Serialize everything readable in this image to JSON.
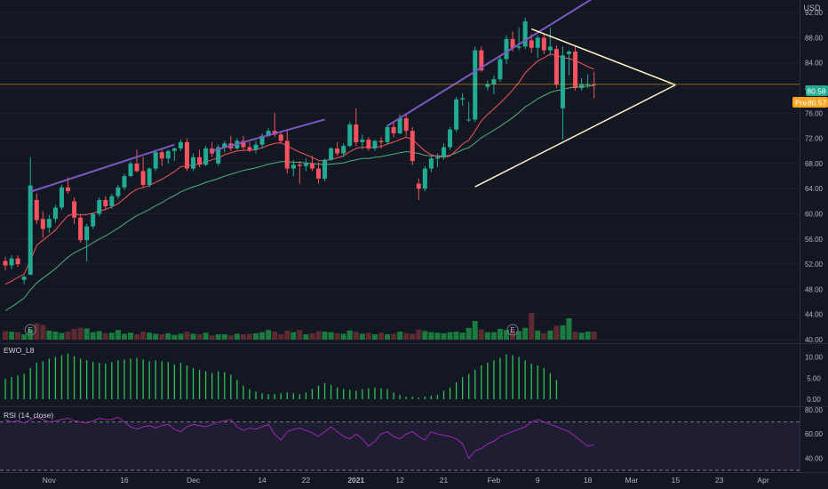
{
  "currency": "USD",
  "price_badge": {
    "label": "80.58",
    "value": 80.58,
    "color": "#22ab94"
  },
  "pre_badge": {
    "label": "Pre",
    "value_label": "80.57",
    "value": 80.57,
    "color": "#f5a623"
  },
  "current_price_line": 80.58,
  "colors": {
    "up": "#22ab94",
    "down": "#f7525f",
    "purple": "#7e57c2",
    "triangle": "#fff3c4",
    "ema_fast": "#f7525f",
    "ema_slow": "#4caf7c",
    "rsi": "#9c27b0"
  },
  "chart_data": [
    {
      "type": "candlestick",
      "title": "",
      "ylim": [
        40,
        94
      ],
      "y_ticks": [
        "40.00",
        "44.00",
        "48.00",
        "52.00",
        "56.00",
        "60.00",
        "64.00",
        "68.00",
        "72.00",
        "76.00",
        "80.00",
        "84.00",
        "88.00",
        "92.00"
      ],
      "x_ticks": [
        "Nov",
        "16",
        "Dec",
        "14",
        "22",
        "2021",
        "12",
        "21",
        "Feb",
        "9",
        "18",
        "Mar",
        "15",
        "23",
        "Apr"
      ],
      "candles": [
        [
          52.5,
          53.2,
          51.0,
          51.8
        ],
        [
          51.8,
          53.4,
          51.2,
          52.9
        ],
        [
          52.9,
          53.4,
          51.6,
          52.0
        ],
        [
          49.5,
          50.2,
          48.8,
          50.0
        ],
        [
          50.3,
          69.0,
          50.3,
          64.5
        ],
        [
          62.2,
          63.2,
          58.4,
          59.0
        ],
        [
          59.2,
          60.4,
          56.2,
          57.6
        ],
        [
          57.8,
          59.8,
          57.0,
          59.2
        ],
        [
          59.2,
          61.4,
          58.6,
          61.0
        ],
        [
          61.0,
          64.6,
          60.6,
          64.2
        ],
        [
          64.2,
          65.8,
          63.2,
          63.6
        ],
        [
          62.0,
          62.6,
          58.4,
          59.4
        ],
        [
          59.4,
          60.0,
          55.4,
          55.8
        ],
        [
          55.8,
          58.4,
          52.4,
          58.0
        ],
        [
          58.0,
          60.2,
          57.6,
          60.0
        ],
        [
          60.0,
          62.6,
          59.6,
          62.2
        ],
        [
          62.2,
          62.8,
          60.6,
          61.2
        ],
        [
          61.2,
          63.2,
          60.8,
          62.8
        ],
        [
          62.8,
          64.6,
          62.4,
          64.2
        ],
        [
          64.2,
          66.4,
          63.8,
          66.0
        ],
        [
          66.0,
          68.4,
          65.8,
          68.0
        ],
        [
          68.0,
          70.2,
          66.6,
          66.8
        ],
        [
          66.8,
          69.0,
          64.2,
          64.6
        ],
        [
          64.6,
          67.4,
          64.2,
          67.2
        ],
        [
          67.2,
          70.2,
          66.8,
          69.8
        ],
        [
          69.8,
          70.4,
          67.6,
          68.8
        ],
        [
          68.8,
          70.2,
          68.0,
          70.0
        ],
        [
          70.0,
          70.6,
          68.4,
          70.4
        ],
        [
          70.4,
          71.8,
          70.0,
          71.4
        ],
        [
          71.4,
          72.0,
          66.8,
          67.2
        ],
        [
          67.2,
          69.6,
          66.8,
          69.0
        ],
        [
          69.0,
          70.2,
          67.4,
          67.8
        ],
        [
          67.8,
          70.8,
          67.6,
          70.4
        ],
        [
          70.4,
          71.4,
          69.0,
          69.6
        ],
        [
          68.0,
          71.0,
          67.6,
          70.6
        ],
        [
          70.6,
          71.6,
          69.8,
          71.2
        ],
        [
          71.2,
          72.4,
          70.0,
          70.4
        ],
        [
          70.4,
          72.0,
          70.2,
          71.6
        ],
        [
          71.6,
          72.4,
          70.2,
          70.6
        ],
        [
          70.6,
          71.4,
          69.8,
          70.2
        ],
        [
          70.2,
          71.6,
          69.6,
          71.0
        ],
        [
          71.0,
          72.8,
          70.4,
          72.4
        ],
        [
          72.4,
          73.6,
          72.2,
          73.2
        ],
        [
          73.2,
          76.0,
          72.2,
          72.6
        ],
        [
          72.6,
          73.2,
          71.2,
          71.6
        ],
        [
          71.6,
          73.4,
          66.4,
          67.2
        ],
        [
          67.2,
          68.6,
          66.0,
          67.8
        ],
        [
          67.8,
          68.4,
          64.8,
          67.6
        ],
        [
          67.6,
          68.8,
          66.8,
          68.0
        ],
        [
          68.0,
          69.2,
          66.8,
          67.2
        ],
        [
          67.2,
          68.2,
          64.8,
          65.6
        ],
        [
          65.6,
          68.8,
          65.2,
          68.6
        ],
        [
          68.6,
          70.6,
          68.4,
          70.4
        ],
        [
          70.4,
          71.4,
          69.2,
          69.6
        ],
        [
          69.6,
          71.2,
          69.0,
          70.8
        ],
        [
          70.8,
          74.6,
          70.6,
          74.2
        ],
        [
          74.2,
          76.8,
          70.8,
          71.4
        ],
        [
          71.4,
          72.6,
          70.2,
          71.8
        ],
        [
          71.8,
          72.2,
          70.0,
          70.4
        ],
        [
          70.4,
          71.8,
          70.0,
          71.6
        ],
        [
          71.6,
          72.2,
          70.4,
          71.4
        ],
        [
          71.4,
          74.2,
          71.0,
          73.8
        ],
        [
          73.8,
          74.6,
          72.2,
          72.8
        ],
        [
          72.8,
          75.8,
          72.6,
          75.2
        ],
        [
          75.2,
          75.8,
          72.4,
          73.2
        ],
        [
          73.2,
          73.8,
          67.8,
          68.4
        ],
        [
          64.8,
          65.6,
          62.2,
          64.0
        ],
        [
          64.0,
          67.6,
          63.6,
          67.2
        ],
        [
          67.2,
          69.2,
          66.6,
          68.8
        ],
        [
          68.8,
          69.6,
          67.4,
          69.0
        ],
        [
          69.0,
          71.2,
          68.6,
          70.6
        ],
        [
          70.6,
          73.8,
          70.2,
          73.4
        ],
        [
          73.4,
          78.6,
          73.0,
          78.2
        ],
        [
          78.2,
          79.2,
          77.2,
          78.4
        ],
        [
          75.0,
          77.8,
          74.6,
          75.0
        ],
        [
          75.0,
          86.6,
          74.6,
          86.0
        ],
        [
          86.0,
          86.6,
          82.6,
          82.8
        ],
        [
          80.2,
          81.2,
          79.6,
          80.6
        ],
        [
          80.6,
          82.0,
          79.0,
          81.4
        ],
        [
          81.4,
          85.0,
          81.0,
          84.6
        ],
        [
          84.6,
          88.4,
          83.8,
          87.8
        ],
        [
          87.8,
          89.0,
          85.8,
          86.4
        ],
        [
          86.4,
          89.6,
          86.0,
          86.6
        ],
        [
          86.6,
          91.2,
          86.2,
          90.6
        ],
        [
          87.6,
          88.6,
          85.6,
          86.4
        ],
        [
          86.4,
          88.4,
          84.8,
          88.0
        ],
        [
          88.0,
          88.6,
          85.4,
          86.0
        ],
        [
          86.0,
          89.6,
          85.2,
          86.6
        ],
        [
          86.2,
          86.8,
          80.0,
          80.6
        ],
        [
          76.8,
          86.6,
          71.8,
          85.2
        ],
        [
          85.4,
          86.0,
          82.0,
          85.8
        ],
        [
          85.8,
          86.8,
          79.6,
          80.0
        ],
        [
          80.0,
          81.6,
          79.6,
          80.6
        ],
        [
          80.6,
          82.2,
          80.0,
          80.6
        ],
        [
          80.6,
          82.6,
          78.4,
          80.58
        ]
      ],
      "ema_fast": [
        48.8,
        49.3,
        49.9,
        50.4,
        52.6,
        55.0,
        55.8,
        56.6,
        57.4,
        58.6,
        59.7,
        60.0,
        59.8,
        59.9,
        60.1,
        60.5,
        60.7,
        61.1,
        61.6,
        62.4,
        63.3,
        63.9,
        64.2,
        64.5,
        65.0,
        65.5,
        66.1,
        66.7,
        67.5,
        67.6,
        67.8,
        67.9,
        68.3,
        68.6,
        68.9,
        69.4,
        69.7,
        70.0,
        70.1,
        70.1,
        70.2,
        70.5,
        70.9,
        71.2,
        71.3,
        70.8,
        70.3,
        69.8,
        69.4,
        69.0,
        68.5,
        68.4,
        68.7,
        68.9,
        69.2,
        69.9,
        70.4,
        70.6,
        70.5,
        70.6,
        70.7,
        71.1,
        71.4,
        71.8,
        72.2,
        71.8,
        70.9,
        70.0,
        69.4,
        69.1,
        69.0,
        69.2,
        70.1,
        71.1,
        71.7,
        73.2,
        74.8,
        75.8,
        76.7,
        77.6,
        78.6,
        79.7,
        80.9,
        82.4,
        83.4,
        84.3,
        84.8,
        85.4,
        85.2,
        84.8,
        84.7,
        84.4,
        83.9,
        83.4,
        83.0
      ],
      "ema_slow": [
        44.6,
        45.2,
        45.9,
        46.6,
        47.9,
        49.0,
        49.8,
        50.5,
        51.3,
        52.2,
        53.1,
        53.8,
        54.3,
        54.8,
        55.4,
        56.0,
        56.5,
        57.1,
        57.7,
        58.4,
        59.1,
        59.7,
        60.2,
        60.7,
        61.3,
        61.8,
        62.4,
        62.9,
        63.5,
        63.9,
        64.3,
        64.6,
        65.0,
        65.3,
        65.6,
        66.0,
        66.3,
        66.6,
        66.9,
        67.1,
        67.3,
        67.6,
        67.9,
        68.1,
        68.3,
        68.3,
        68.2,
        68.2,
        68.1,
        68.0,
        67.9,
        67.8,
        67.9,
        68.0,
        68.1,
        68.4,
        68.6,
        68.8,
        68.8,
        69.0,
        69.1,
        69.3,
        69.5,
        69.7,
        69.9,
        69.8,
        69.6,
        69.3,
        69.2,
        69.2,
        69.2,
        69.3,
        69.7,
        70.2,
        70.5,
        71.3,
        72.1,
        72.7,
        73.3,
        73.9,
        74.6,
        75.3,
        76.1,
        77.0,
        77.6,
        78.3,
        78.8,
        79.3,
        79.6,
        79.8,
        80.0,
        80.2,
        80.2,
        80.3,
        80.4
      ],
      "volume": [
        0.32,
        0.3,
        0.28,
        0.2,
        0.38,
        0.62,
        0.55,
        0.34,
        0.3,
        0.25,
        0.3,
        0.4,
        0.45,
        0.42,
        0.28,
        0.32,
        0.24,
        0.26,
        0.36,
        0.22,
        0.26,
        0.2,
        0.3,
        0.26,
        0.22,
        0.2,
        0.24,
        0.18,
        0.22,
        0.3,
        0.22,
        0.2,
        0.26,
        0.16,
        0.2,
        0.2,
        0.16,
        0.22,
        0.2,
        0.22,
        0.24,
        0.28,
        0.36,
        0.3,
        0.2,
        0.34,
        0.28,
        0.36,
        0.2,
        0.24,
        0.32,
        0.3,
        0.28,
        0.24,
        0.22,
        0.34,
        0.3,
        0.22,
        0.26,
        0.2,
        0.26,
        0.2,
        0.22,
        0.3,
        0.24,
        0.22,
        0.38,
        0.32,
        0.28,
        0.26,
        0.24,
        0.28,
        0.3,
        0.26,
        0.44,
        0.7,
        0.38,
        0.28,
        0.28,
        0.4,
        0.36,
        0.34,
        0.32,
        0.44,
        1.0,
        0.34,
        0.24,
        0.34,
        0.52,
        0.54,
        0.8,
        0.3,
        0.26,
        0.3,
        0.3
      ],
      "earnings_marker": "E",
      "drawings": {
        "purple_lines": [
          [
            [
              4,
              63.5
            ],
            [
              27,
              71.0
            ]
          ],
          [
            [
              33,
              70.0
            ],
            [
              51,
              75.0
            ]
          ],
          [
            [
              61,
              74.0
            ],
            [
              95,
              95.0
            ]
          ]
        ],
        "triangle": [
          [
            [
              84,
              89.4
            ],
            [
              107,
              80.5
            ]
          ],
          [
            [
              75,
              64.3
            ],
            [
              107,
              80.5
            ]
          ]
        ]
      }
    },
    {
      "type": "bar",
      "title": "EWO_L8",
      "ylim": [
        0,
        12
      ],
      "y_ticks": [
        "0.00",
        "5.00",
        "10.00"
      ],
      "values": [
        4.8,
        5.2,
        5.6,
        6.0,
        7.4,
        8.6,
        9.0,
        9.6,
        10.0,
        10.4,
        10.8,
        10.2,
        9.6,
        9.2,
        8.8,
        8.6,
        8.4,
        8.8,
        9.2,
        9.4,
        9.6,
        9.8,
        9.4,
        9.0,
        9.2,
        9.0,
        8.8,
        8.2,
        8.6,
        8.0,
        7.4,
        7.0,
        6.6,
        6.2,
        6.6,
        6.4,
        5.8,
        4.6,
        3.2,
        2.4,
        1.8,
        1.4,
        1.2,
        1.2,
        1.4,
        1.6,
        1.4,
        1.2,
        1.6,
        2.4,
        3.2,
        3.8,
        3.4,
        2.8,
        2.4,
        2.2,
        2.0,
        2.4,
        2.6,
        2.8,
        2.6,
        2.4,
        1.6,
        1.0,
        0.6,
        0.6,
        0.4,
        0.6,
        0.8,
        1.0,
        2.0,
        2.8,
        4.0,
        5.2,
        6.0,
        7.0,
        8.0,
        8.6,
        9.2,
        9.8,
        10.6,
        10.4,
        10.0,
        9.2,
        8.4,
        8.0,
        7.4,
        6.2,
        4.6
      ]
    },
    {
      "type": "line",
      "title": "RSI (14, close)",
      "ylim": [
        30,
        80
      ],
      "y_ticks": [
        "40.00",
        "60.00",
        "80.00"
      ],
      "bands": [
        30,
        70
      ],
      "values": [
        72,
        70,
        71,
        69,
        72,
        74,
        72,
        70,
        71,
        72,
        73,
        71,
        70,
        69,
        71,
        73,
        72,
        72,
        74,
        70,
        66,
        64,
        66,
        67,
        65,
        67,
        68,
        64,
        62,
        66,
        68,
        67,
        66,
        68,
        70,
        71,
        72,
        66,
        63,
        65,
        64,
        66,
        68,
        60,
        55,
        62,
        64,
        65,
        63,
        61,
        58,
        62,
        66,
        62,
        58,
        56,
        60,
        56,
        50,
        54,
        60,
        62,
        58,
        56,
        60,
        62,
        58,
        55,
        62,
        60,
        59,
        58,
        56,
        52,
        40,
        46,
        48,
        52,
        54,
        58,
        60,
        62,
        64,
        66,
        70,
        72,
        70,
        68,
        66,
        64,
        62,
        58,
        54,
        50,
        51
      ]
    }
  ]
}
